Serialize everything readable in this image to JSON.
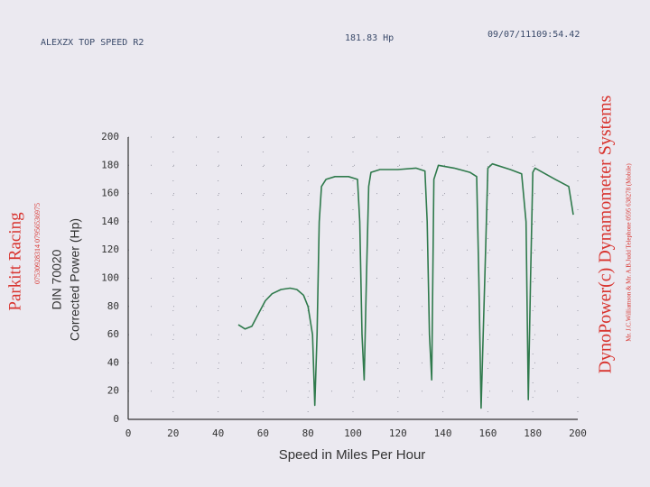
{
  "chart_data": {
    "type": "line",
    "title": "ALEXZX TOP SPEED R2",
    "subtitle": "181.83 Hp",
    "annotations": [
      "09/07/11109:54.42",
      "Parkitt Racing",
      "07530928314 07956536975",
      "DIN 70020",
      "Corrected Power (Hp)",
      "DynoPower(c) Dynamometer Systems",
      "Mr. J.C.Williamson & Mr. A.B.Judd Telephone 0595 638278 (Mobile)"
    ],
    "x_label": "Speed in Miles Per Hour",
    "x": [
      49,
      52,
      55,
      58,
      61,
      64,
      68,
      72,
      75,
      78,
      80,
      82,
      83,
      84,
      85,
      86,
      88,
      92,
      98,
      102,
      103,
      104,
      105,
      106,
      107,
      108,
      112,
      120,
      128,
      132,
      133,
      134,
      135,
      136,
      138,
      145,
      152,
      155,
      156,
      157,
      159,
      160,
      162,
      170,
      175,
      177,
      178,
      179,
      180,
      181,
      190,
      196,
      198
    ],
    "series": [
      {
        "name": "Corrected Power (Hp)",
        "color": "#2f7a4c",
        "values": [
          67,
          64,
          66,
          75,
          84,
          89,
          92,
          93,
          92,
          88,
          80,
          60,
          10,
          60,
          140,
          165,
          170,
          172,
          172,
          170,
          140,
          60,
          28,
          100,
          165,
          175,
          177,
          177,
          178,
          176,
          140,
          60,
          28,
          170,
          180,
          178,
          175,
          172,
          100,
          8,
          120,
          178,
          181,
          177,
          174,
          140,
          14,
          100,
          175,
          178,
          170,
          165,
          145
        ]
      }
    ],
    "xlim": [
      0,
      200
    ],
    "ylim": [
      0,
      200
    ],
    "xticks": [
      0,
      20,
      40,
      60,
      80,
      100,
      120,
      140,
      160,
      180,
      200
    ],
    "yticks": [
      0,
      20,
      40,
      60,
      80,
      100,
      120,
      140,
      160,
      180,
      200
    ],
    "grid": true
  }
}
